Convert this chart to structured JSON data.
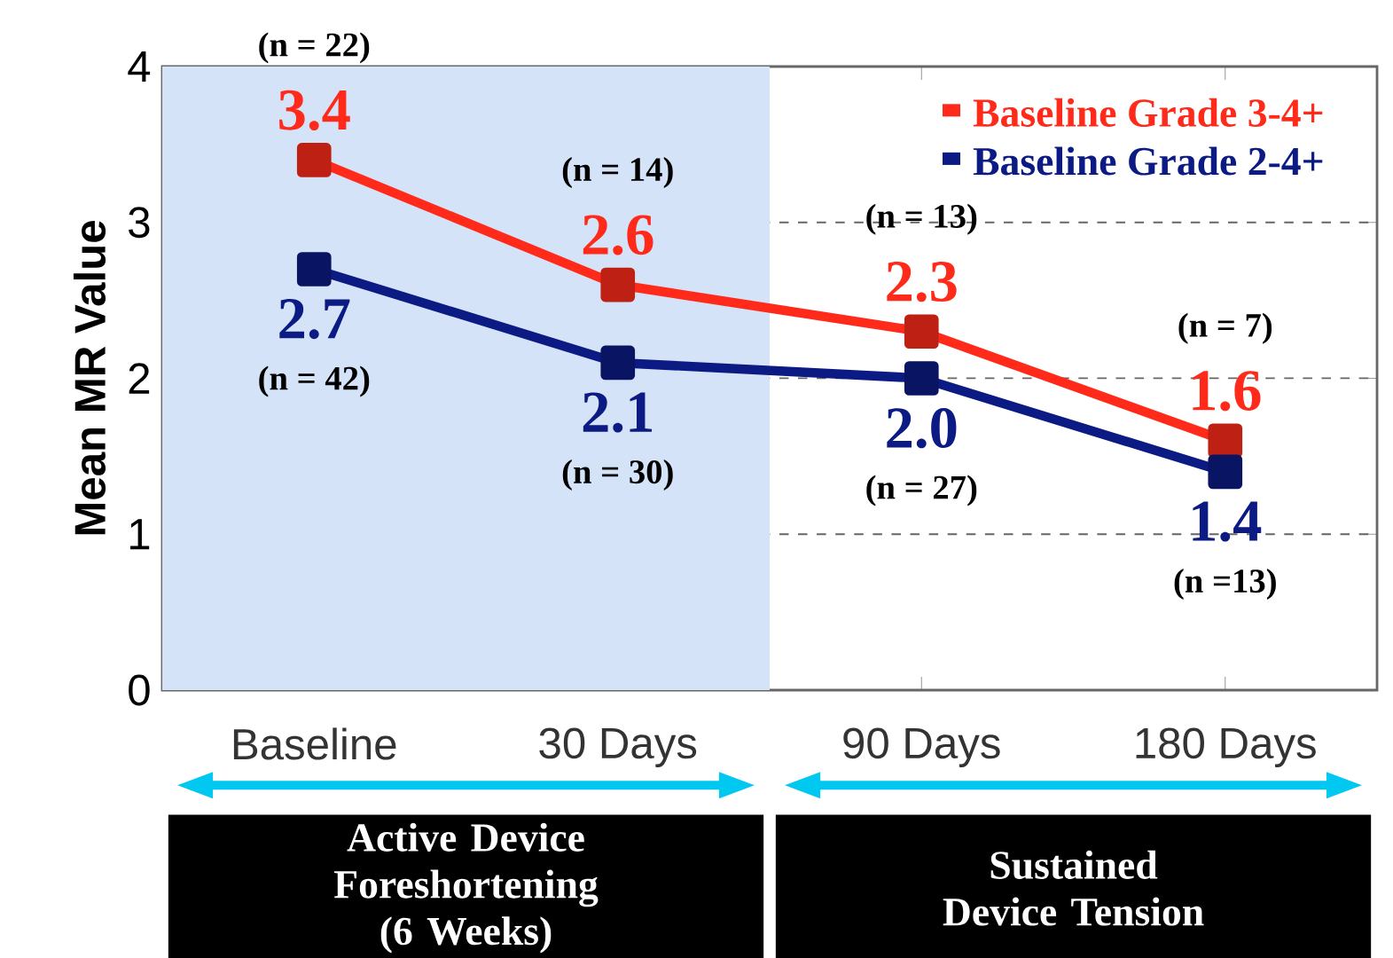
{
  "chart_data": {
    "type": "line",
    "ylabel": "Mean MR Value",
    "categories": [
      "Baseline",
      "30 Days",
      "90 Days",
      "180 Days"
    ],
    "series": [
      {
        "name": "Baseline Grade 3-4+",
        "color": "#ff2a1a",
        "values": [
          3.4,
          2.6,
          2.3,
          1.6
        ],
        "value_labels": [
          "3.4",
          "2.6",
          "2.3",
          "1.6"
        ]
      },
      {
        "name": "Baseline Grade 2-4+",
        "color": "#0c1a84",
        "values": [
          2.7,
          2.1,
          2.0,
          1.4
        ],
        "value_labels": [
          "2.7",
          "2.1",
          "2.0",
          "1.4"
        ]
      }
    ],
    "ylim": [
      0,
      4
    ],
    "yticks": [
      0,
      1,
      2,
      3,
      4
    ],
    "grid": "y",
    "legend": "top right",
    "marker": "square",
    "line_style": "solid",
    "annotations": [
      {
        "text": "(n = 22)",
        "x": "Baseline",
        "y": 3.4
      },
      {
        "text": "(n = 42)",
        "x": "Baseline",
        "y": 2.7
      },
      {
        "text": "(n = 14)",
        "x": "30 Days",
        "y": 2.6
      },
      {
        "text": "(n = 30)",
        "x": "30 Days",
        "y": 2.1
      },
      {
        "text": "(n = 13)",
        "x": "90 Days",
        "y": 2.3
      },
      {
        "text": "(n = 27)",
        "x": "90 Days",
        "y": 2.0
      },
      {
        "text": "(n = 7)",
        "x": "180 Days",
        "y": 1.6
      },
      {
        "text": "(n =13)",
        "x": "180 Days",
        "y": 1.4
      },
      "Active Device Foreshortening (6 Weeks)",
      "Sustained Device Tension"
    ],
    "bands": [
      {
        "axis": "x",
        "from": "Baseline",
        "to": "30 Days",
        "color": "#d4e3f8"
      }
    ]
  }
}
